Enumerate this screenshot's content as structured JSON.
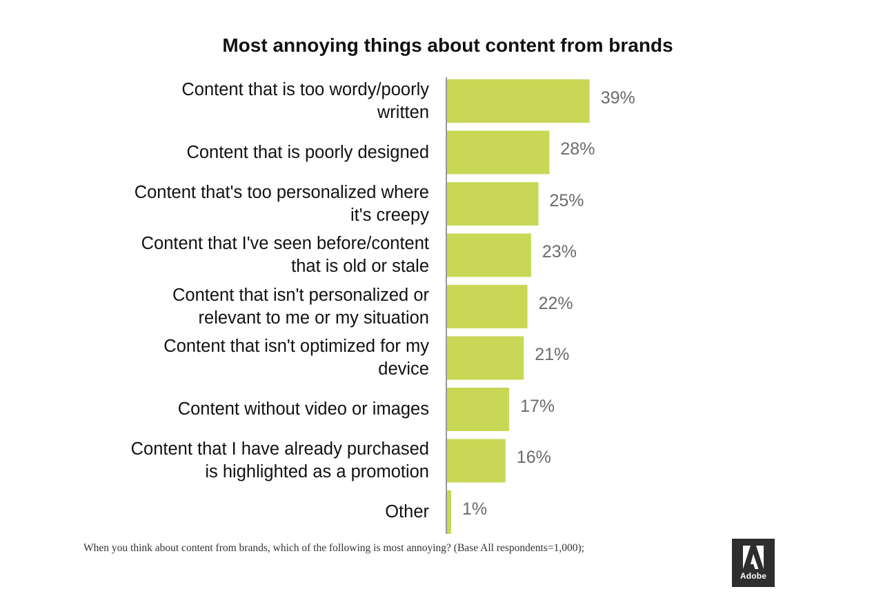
{
  "chart_data": {
    "type": "bar",
    "orientation": "horizontal",
    "title": "Most annoying things about content from brands",
    "categories": [
      [
        "Content that is too wordy/poorly",
        "written"
      ],
      [
        "Content that is poorly designed"
      ],
      [
        "Content that's too personalized where",
        "it's creepy"
      ],
      [
        "Content that I've seen before/content",
        "that is old or stale"
      ],
      [
        "Content that isn't personalized or",
        "relevant to me or my situation"
      ],
      [
        "Content that isn't optimized for my",
        "device"
      ],
      [
        "Content without video or images"
      ],
      [
        "Content that I have already purchased",
        "is highlighted as a promotion"
      ],
      [
        "Other"
      ]
    ],
    "values": [
      39,
      28,
      25,
      23,
      22,
      21,
      17,
      16,
      1
    ],
    "value_labels": [
      "39%",
      "28%",
      "25%",
      "23%",
      "22%",
      "21%",
      "17%",
      "16%",
      "1%"
    ],
    "unit": "%",
    "xlim": [
      0,
      100
    ],
    "grid": false,
    "legend": "none",
    "colors": {
      "bar": "#c8d856",
      "axis": "#777777"
    }
  },
  "footnote": "When you think about content from brands, which of the following is most annoying? (Base All respondents=1,000);",
  "logo": {
    "text": "Adobe"
  }
}
